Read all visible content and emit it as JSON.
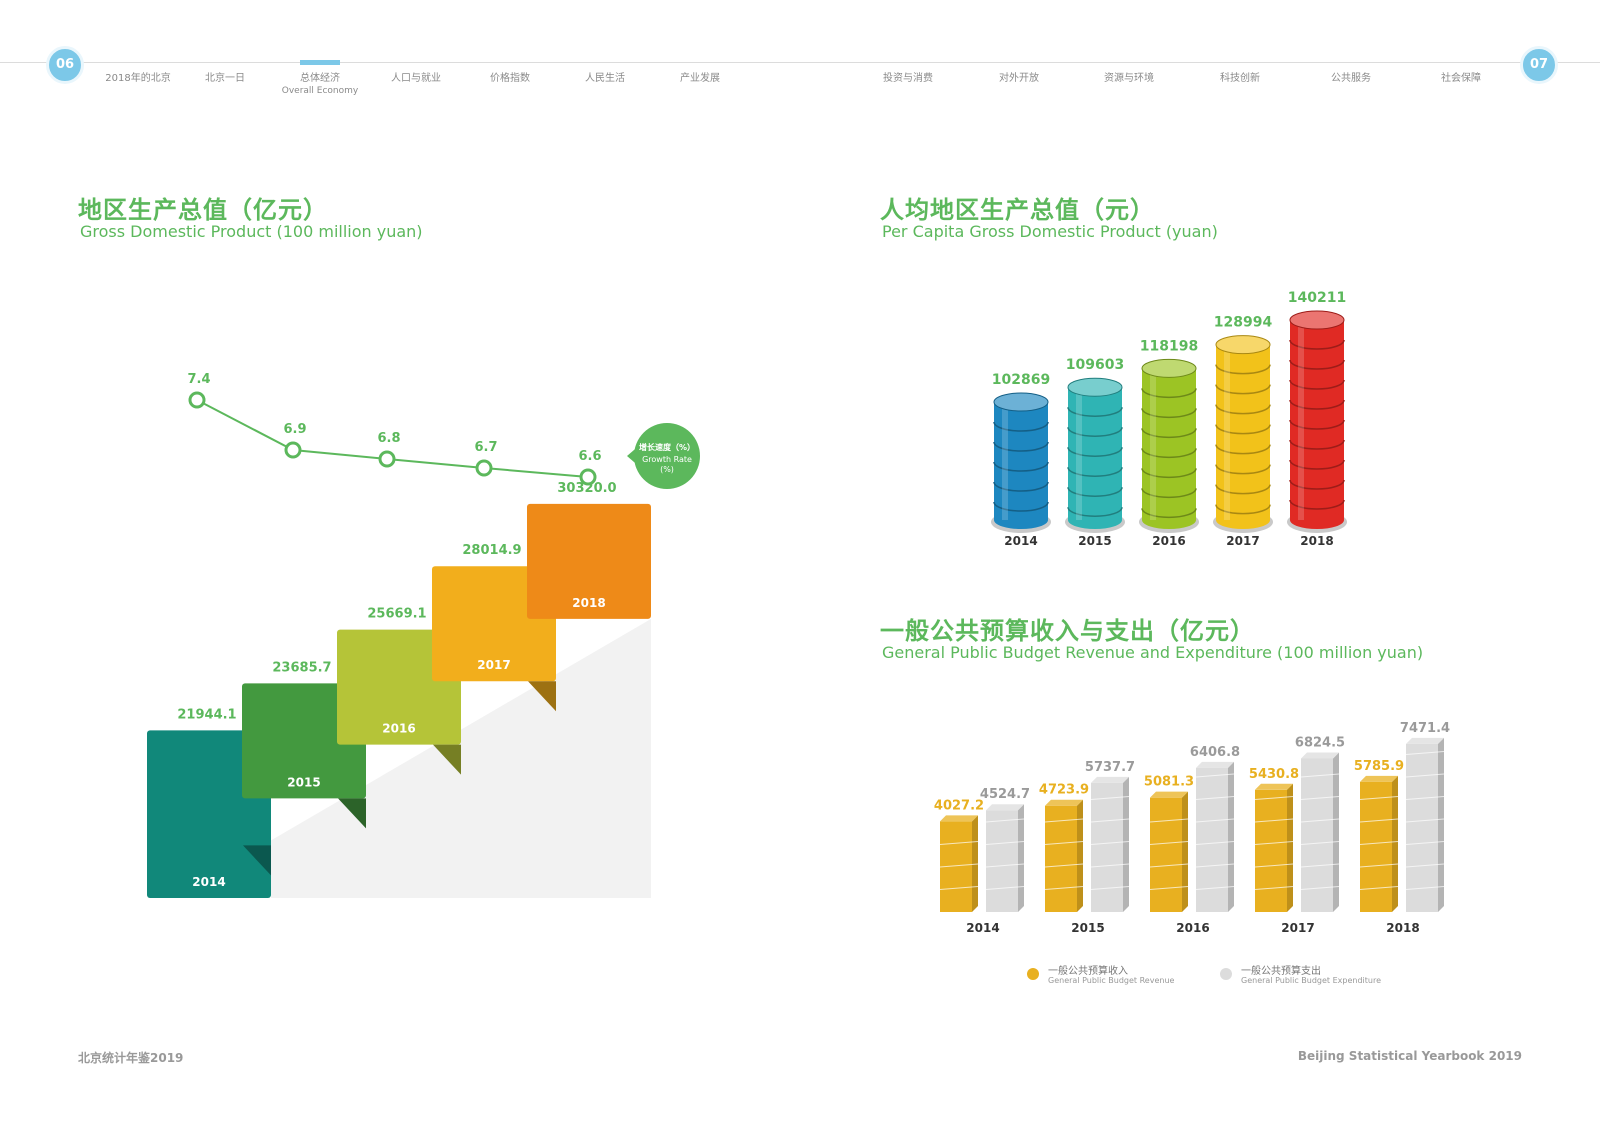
{
  "header": {
    "left_page": "06",
    "right_page": "07",
    "nav_items": [
      {
        "label": "2018年的北京",
        "sub": ""
      },
      {
        "label": "北京一日",
        "sub": ""
      },
      {
        "label": "总体经济",
        "sub": "Overall Economy"
      },
      {
        "label": "人口与就业",
        "sub": ""
      },
      {
        "label": "价格指数",
        "sub": ""
      },
      {
        "label": "人民生活",
        "sub": ""
      },
      {
        "label": "产业发展",
        "sub": ""
      },
      {
        "label": "投资与消费",
        "sub": ""
      },
      {
        "label": "对外开放",
        "sub": ""
      },
      {
        "label": "资源与环境",
        "sub": ""
      },
      {
        "label": "科技创新",
        "sub": ""
      },
      {
        "label": "公共服务",
        "sub": ""
      },
      {
        "label": "社会保障",
        "sub": ""
      }
    ]
  },
  "colors": {
    "title_green": "#5cb85c",
    "accent_blue": "#7cc8e8",
    "revenue_gold": "#e8b020",
    "expenditure_gray": "#dcdcdc"
  },
  "sections": {
    "gdp": {
      "title_cn": "地区生产总值（亿元）",
      "title_en": "Gross Domestic Product (100 million yuan)"
    },
    "per_capita": {
      "title_cn": "人均地区生产总值（元）",
      "title_en": "Per Capita Gross Domestic Product (yuan)"
    },
    "budget": {
      "title_cn": "一般公共预算收入与支出（亿元）",
      "title_en": "General Public Budget Revenue and Expenditure (100 million yuan)"
    }
  },
  "growth_badge": {
    "cn": "增长速度（%）",
    "en": "Growth Rate",
    "unit": "(%)"
  },
  "legend": {
    "revenue_cn": "一般公共预算收入",
    "revenue_en": "General Public Budget Revenue",
    "expenditure_cn": "一般公共预算支出",
    "expenditure_en": "General Public Budget Expenditure"
  },
  "footer": {
    "left": "北京统计年鉴2019",
    "right": "Beijing Statistical Yearbook 2019"
  },
  "chart_data": [
    {
      "type": "bar",
      "name": "gdp",
      "title": "地区生产总值（亿元）",
      "categories": [
        "2014",
        "2015",
        "2016",
        "2017",
        "2018"
      ],
      "values": [
        21944.1,
        23685.7,
        25669.1,
        28014.9,
        30320.0
      ],
      "value_labels": [
        "21944.1",
        "23685.7",
        "25669.1",
        "28014.9",
        "30320.0"
      ],
      "colors": [
        "#11887a",
        "#43993f",
        "#b5c438",
        "#f2ae1c",
        "#ee8a18"
      ]
    },
    {
      "type": "line",
      "name": "growth_rate",
      "title": "增长速度（%）",
      "categories": [
        "2014",
        "2015",
        "2016",
        "2017",
        "2018"
      ],
      "values": [
        7.4,
        6.9,
        6.8,
        6.7,
        6.6
      ],
      "value_labels": [
        "7.4",
        "6.9",
        "6.8",
        "6.7",
        "6.6"
      ],
      "ylim": [
        6.5,
        7.5
      ]
    },
    {
      "type": "bar",
      "name": "per_capita",
      "title": "人均地区生产总值（元）",
      "categories": [
        "2014",
        "2015",
        "2016",
        "2017",
        "2018"
      ],
      "values": [
        102869,
        109603,
        118198,
        128994,
        140211
      ],
      "colors": [
        "#1d87c0",
        "#2fb4b4",
        "#9cc424",
        "#f2c21a",
        "#e02a24"
      ]
    },
    {
      "type": "bar",
      "name": "budget",
      "title": "一般公共预算收入与支出（亿元）",
      "categories": [
        "2014",
        "2015",
        "2016",
        "2017",
        "2018"
      ],
      "series": [
        {
          "name": "一般公共预算收入",
          "values": [
            4027.2,
            4723.9,
            5081.3,
            5430.8,
            5785.9
          ],
          "labels": [
            "4027.2",
            "4723.9",
            "5081.3",
            "5430.8",
            "5785.9"
          ],
          "color": "#e8b020"
        },
        {
          "name": "一般公共预算支出",
          "values": [
            4524.7,
            5737.7,
            6406.8,
            6824.5,
            7471.4
          ],
          "labels": [
            "4524.7",
            "5737.7",
            "6406.8",
            "6824.5",
            "7471.4"
          ],
          "color": "#dcdcdc"
        }
      ]
    }
  ]
}
